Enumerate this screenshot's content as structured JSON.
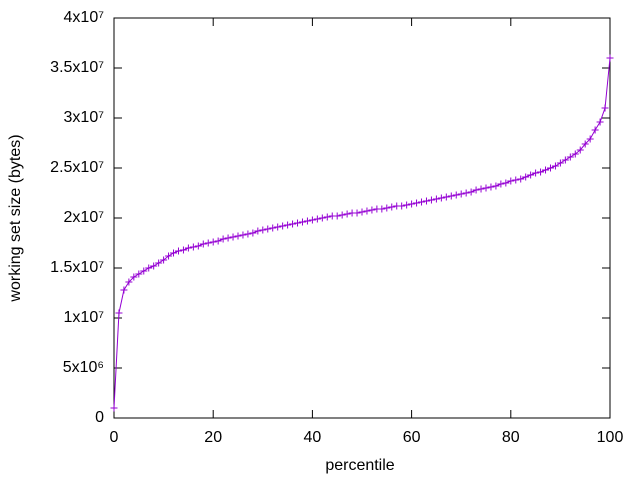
{
  "chart_data": {
    "type": "line",
    "xlabel": "percentile",
    "ylabel": "working set size (bytes)",
    "color": "#9400d3",
    "marker": "+",
    "x": [
      0,
      1,
      2,
      3,
      4,
      5,
      6,
      7,
      8,
      9,
      10,
      11,
      12,
      13,
      14,
      15,
      16,
      17,
      18,
      19,
      20,
      21,
      22,
      23,
      24,
      25,
      26,
      27,
      28,
      29,
      30,
      31,
      32,
      33,
      34,
      35,
      36,
      37,
      38,
      39,
      40,
      41,
      42,
      43,
      44,
      45,
      46,
      47,
      48,
      49,
      50,
      51,
      52,
      53,
      54,
      55,
      56,
      57,
      58,
      59,
      60,
      61,
      62,
      63,
      64,
      65,
      66,
      67,
      68,
      69,
      70,
      71,
      72,
      73,
      74,
      75,
      76,
      77,
      78,
      79,
      80,
      81,
      82,
      83,
      84,
      85,
      86,
      87,
      88,
      89,
      90,
      91,
      92,
      93,
      94,
      95,
      96,
      97,
      98,
      99,
      100
    ],
    "values": [
      1000000,
      10500000,
      12800000,
      13600000,
      14100000,
      14400000,
      14700000,
      15000000,
      15200000,
      15500000,
      15800000,
      16200000,
      16500000,
      16700000,
      16800000,
      17000000,
      17100000,
      17200000,
      17400000,
      17500000,
      17600000,
      17700000,
      17900000,
      18000000,
      18100000,
      18200000,
      18300000,
      18400000,
      18500000,
      18700000,
      18800000,
      18900000,
      19000000,
      19100000,
      19200000,
      19300000,
      19400000,
      19500000,
      19600000,
      19700000,
      19800000,
      19900000,
      20000000,
      20100000,
      20200000,
      20200000,
      20300000,
      20400000,
      20500000,
      20500000,
      20600000,
      20700000,
      20800000,
      20900000,
      20900000,
      21000000,
      21100000,
      21200000,
      21200000,
      21300000,
      21400000,
      21500000,
      21600000,
      21700000,
      21800000,
      21900000,
      22000000,
      22100000,
      22200000,
      22300000,
      22400000,
      22500000,
      22600000,
      22800000,
      22900000,
      23000000,
      23100000,
      23200000,
      23400000,
      23500000,
      23700000,
      23800000,
      23900000,
      24100000,
      24300000,
      24500000,
      24600000,
      24800000,
      25000000,
      25200000,
      25500000,
      25800000,
      26100000,
      26400000,
      26800000,
      27400000,
      27900000,
      28800000,
      29600000,
      31000000,
      36000000
    ],
    "xlim": [
      0,
      100
    ],
    "xticks": [
      0,
      20,
      40,
      60,
      80,
      100
    ],
    "ylim": [
      0,
      40000000
    ],
    "yticks": [
      0,
      {
        "value": 5000000,
        "label": "5x10⁶"
      },
      {
        "value": 10000000,
        "label": "1x10⁷"
      },
      {
        "value": 15000000,
        "label": "1.5x10⁷"
      },
      {
        "value": 20000000,
        "label": "2x10⁷"
      },
      {
        "value": 25000000,
        "label": "2.5x10⁷"
      },
      {
        "value": 30000000,
        "label": "3x10⁷"
      },
      {
        "value": 35000000,
        "label": "3.5x10⁷"
      },
      {
        "value": 40000000,
        "label": "4x10⁷"
      }
    ]
  }
}
